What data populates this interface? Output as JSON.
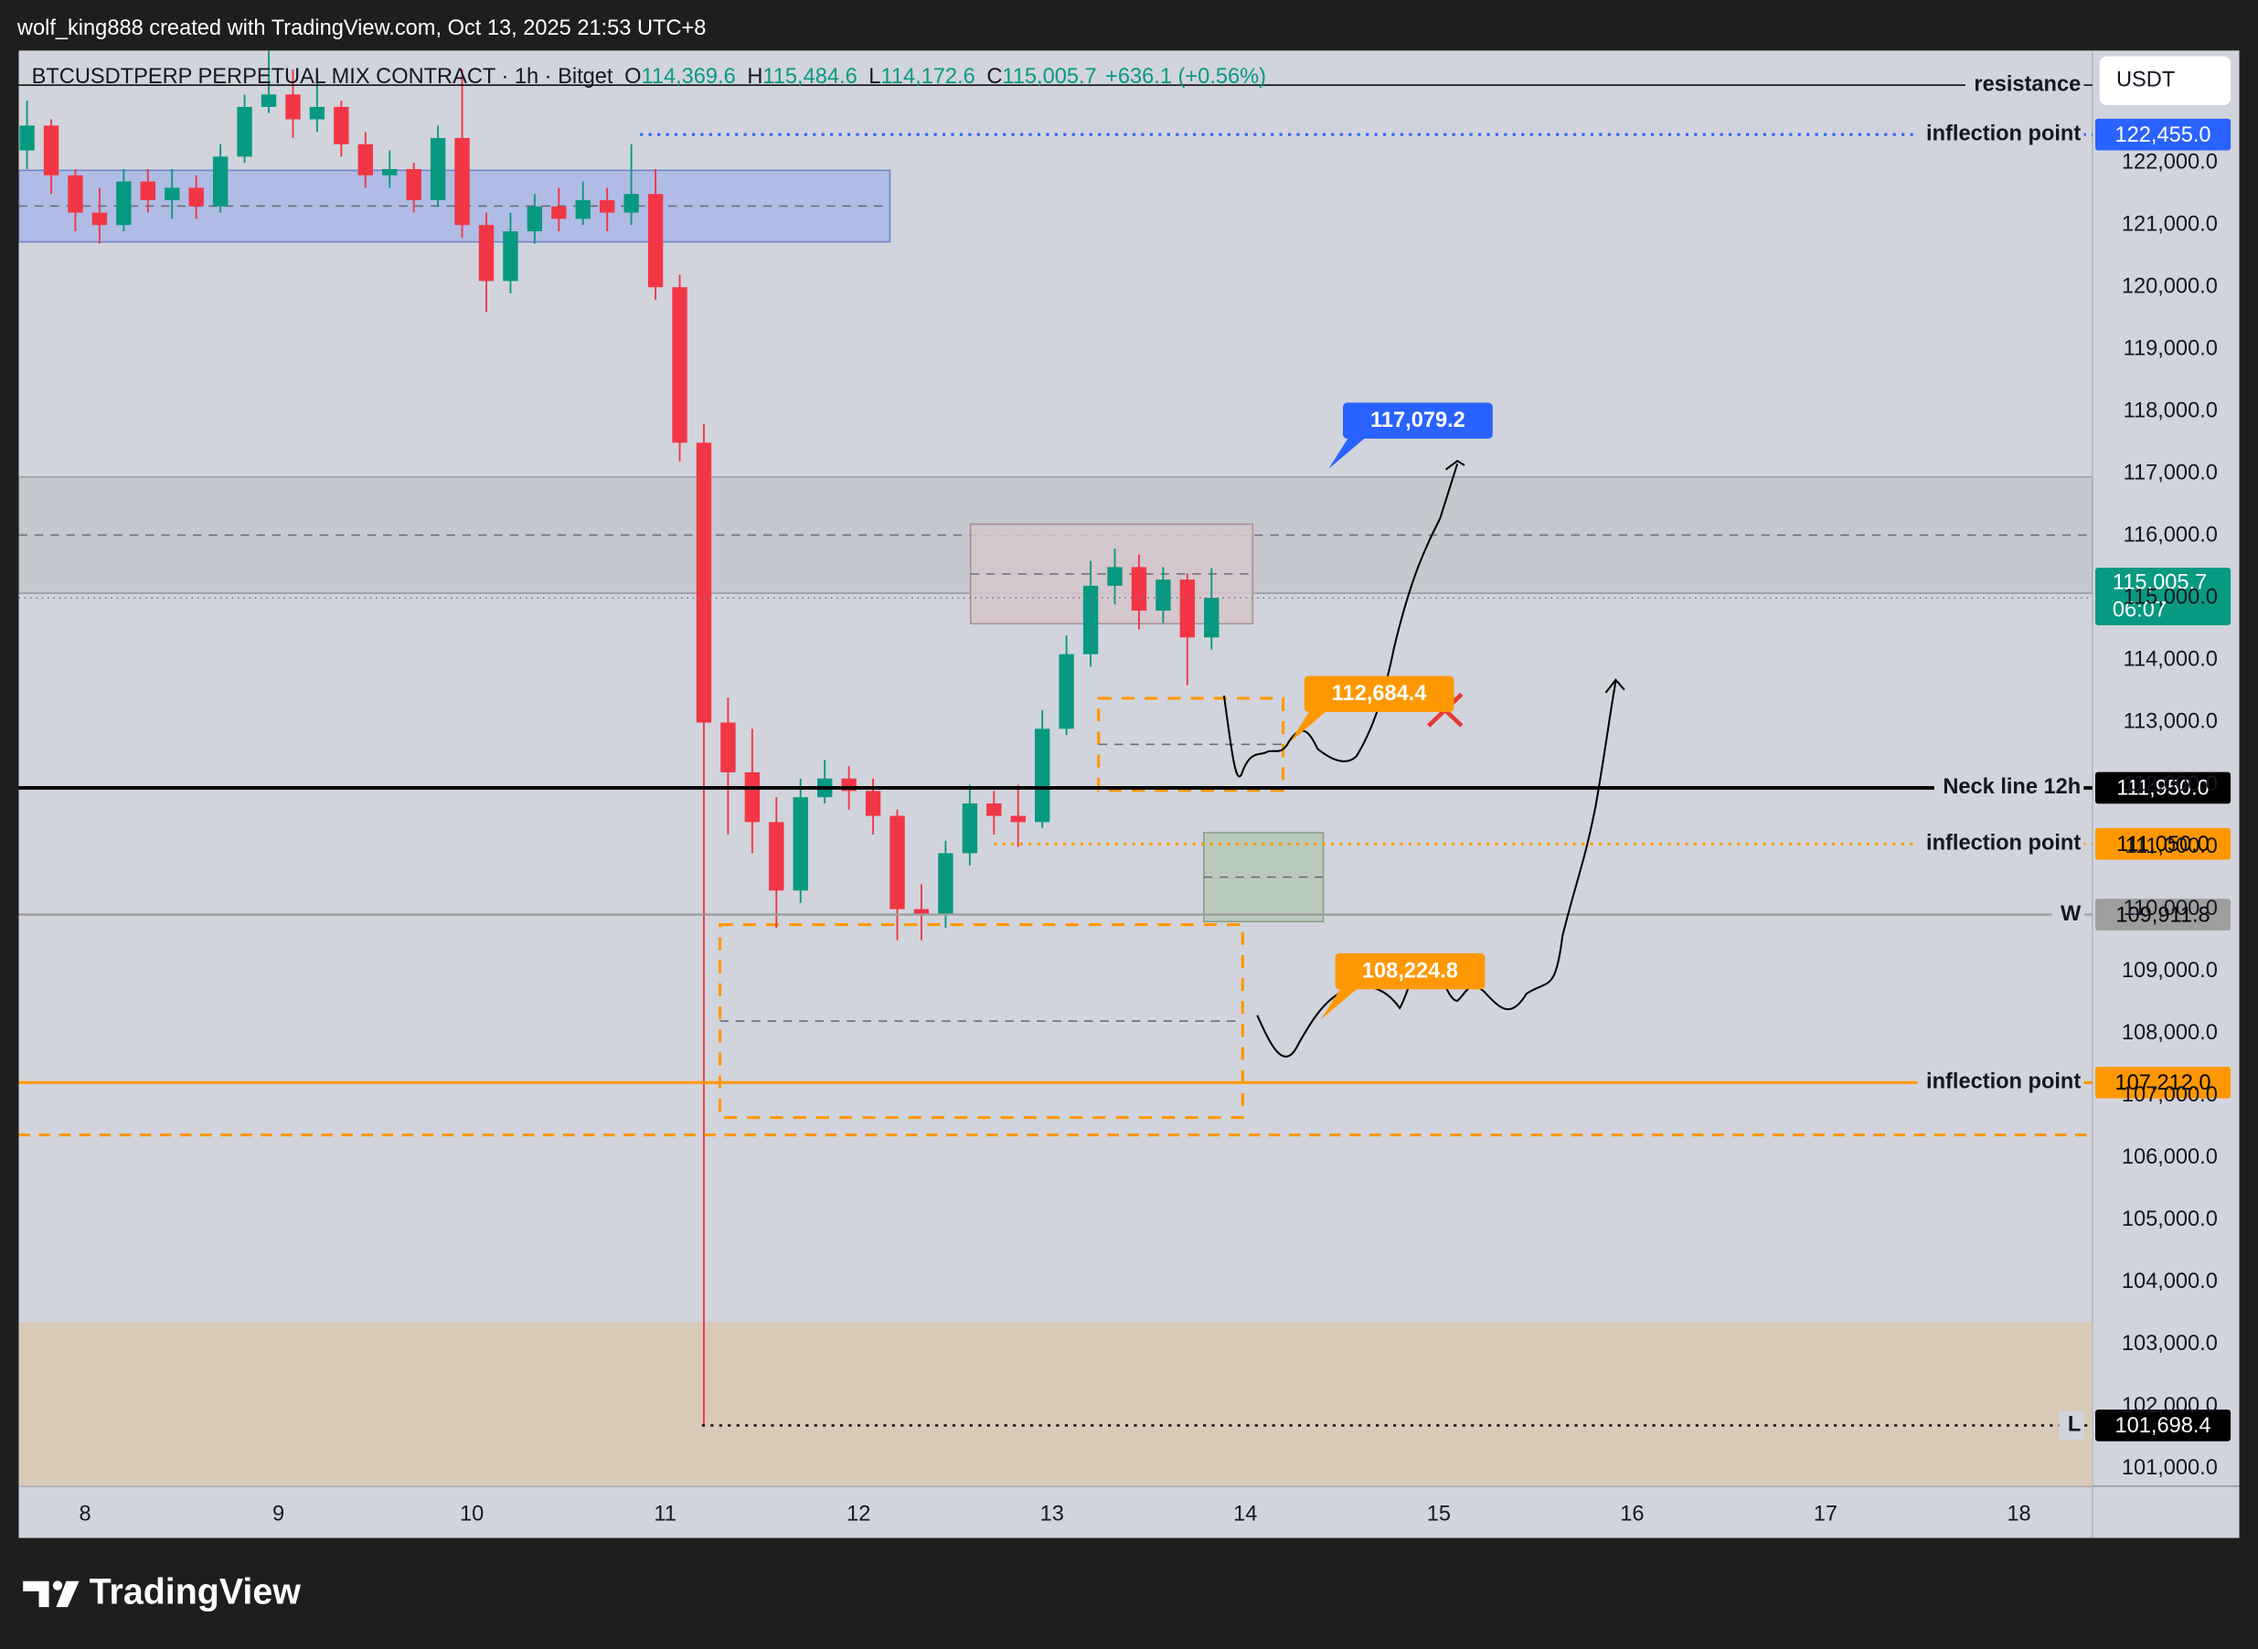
{
  "attribution": "wolf_king888 created with TradingView.com, Oct 13, 2025 21:53 UTC+8",
  "footer": {
    "logo": "TradingView"
  },
  "chart_data": {
    "type": "candlestick",
    "title": "BTCUSDTPERP PERPETUAL MIX CONTRACT · 1h · Bitget",
    "ohlc": [
      {
        "key": "O",
        "value": "114,369.6"
      },
      {
        "key": "H",
        "value": "115,484.6"
      },
      {
        "key": "L",
        "value": "114,172.6"
      },
      {
        "key": "C",
        "value": "115,005.7"
      }
    ],
    "change": "+636.1 (+0.56%)",
    "currency": "USDT",
    "xlim": [
      7.657,
      18.38
    ],
    "xticks": [
      8,
      9,
      10,
      11,
      12,
      13,
      14,
      15,
      16,
      17,
      18
    ],
    "ylim": [
      100722,
      123806
    ],
    "yticks": [
      {
        "value": 101000,
        "label": "101,000.0"
      },
      {
        "value": 102000,
        "label": "102,000.0"
      },
      {
        "value": 103000,
        "label": "103,000.0"
      },
      {
        "value": 104000,
        "label": "104,000.0"
      },
      {
        "value": 105000,
        "label": "105,000.0"
      },
      {
        "value": 106000,
        "label": "106,000.0"
      },
      {
        "value": 107000,
        "label": "107,000.0"
      },
      {
        "value": 108000,
        "label": "108,000.0"
      },
      {
        "value": 109000,
        "label": "109,000.0"
      },
      {
        "value": 110000,
        "label": "110,000.0"
      },
      {
        "value": 111000,
        "label": "111,000.0"
      },
      {
        "value": 112000,
        "label": "112,000.0"
      },
      {
        "value": 113000,
        "label": "113,000.0"
      },
      {
        "value": 114000,
        "label": "114,000.0"
      },
      {
        "value": 115000,
        "label": "115,000.0"
      },
      {
        "value": 116000,
        "label": "116,000.0"
      },
      {
        "value": 117000,
        "label": "117,000.0"
      },
      {
        "value": 118000,
        "label": "118,000.0"
      },
      {
        "value": 119000,
        "label": "119,000.0"
      },
      {
        "value": 120000,
        "label": "120,000.0"
      },
      {
        "value": 121000,
        "label": "121,000.0"
      },
      {
        "value": 122000,
        "label": "122,000.0"
      }
    ],
    "grid": false,
    "up_color": "#089981",
    "down_color": "#f23645",
    "candles": {
      "x": [
        7.7,
        7.825,
        7.95,
        8.075,
        8.2,
        8.325,
        8.45,
        8.575,
        8.7,
        8.825,
        8.95,
        9.075,
        9.2,
        9.325,
        9.45,
        9.575,
        9.7,
        9.825,
        9.95,
        10.075,
        10.2,
        10.325,
        10.45,
        10.575,
        10.7,
        10.825,
        10.95,
        11.075,
        11.2,
        11.325,
        11.45,
        11.575,
        11.7,
        11.825,
        11.95,
        12.075,
        12.2,
        12.325,
        12.45,
        12.575,
        12.7,
        12.825,
        12.95,
        13.075,
        13.2,
        13.325,
        13.45,
        13.575,
        13.7,
        13.825
      ],
      "open": [
        122200,
        122600,
        121800,
        121200,
        121000,
        121700,
        121400,
        121600,
        121300,
        122100,
        122900,
        123100,
        122700,
        122900,
        122300,
        121800,
        121900,
        121400,
        122400,
        121000,
        120100,
        120900,
        121300,
        121100,
        121400,
        121200,
        121500,
        120000,
        117500,
        113000,
        112200,
        111400,
        110300,
        111800,
        112100,
        111900,
        111500,
        110000,
        109900,
        110900,
        111700,
        111500,
        111400,
        112900,
        114100,
        115200,
        115500,
        114800,
        115300,
        114369.6
      ],
      "high": [
        123000,
        122700,
        121900,
        121600,
        121900,
        121900,
        121900,
        121800,
        122300,
        123100,
        123800,
        123500,
        123400,
        123000,
        122500,
        122200,
        122000,
        122600,
        123500,
        121200,
        121200,
        121500,
        121600,
        121700,
        121600,
        122300,
        121900,
        120200,
        117800,
        113400,
        112900,
        111800,
        112100,
        112400,
        112300,
        112100,
        111600,
        110400,
        111100,
        112000,
        111900,
        112000,
        113200,
        114400,
        115600,
        115800,
        115700,
        115500,
        115400,
        115484.6
      ],
      "low": [
        121900,
        121500,
        120900,
        120700,
        120900,
        121200,
        121100,
        121100,
        121200,
        122000,
        122800,
        122400,
        122500,
        122100,
        121600,
        121600,
        121200,
        121300,
        120800,
        119600,
        119900,
        120700,
        120900,
        121000,
        120900,
        121000,
        119800,
        117200,
        101698.4,
        111200,
        110900,
        109700,
        110100,
        111700,
        111600,
        111200,
        109500,
        109500,
        109700,
        110700,
        111200,
        111000,
        111300,
        112800,
        113900,
        114900,
        114500,
        114600,
        113600,
        114172.6
      ],
      "close": [
        122600,
        121800,
        121200,
        121000,
        121700,
        121400,
        121600,
        121300,
        122100,
        122900,
        123100,
        122700,
        122900,
        122300,
        121800,
        121900,
        121400,
        122400,
        121000,
        120100,
        120900,
        121300,
        121100,
        121400,
        121200,
        121500,
        120000,
        117500,
        113000,
        112200,
        111400,
        110300,
        111800,
        112100,
        111900,
        111500,
        110000,
        109900,
        110900,
        111700,
        111500,
        111400,
        112900,
        114100,
        115200,
        115500,
        114800,
        115300,
        114369.6,
        115005.7
      ]
    },
    "last_price": {
      "value": 115005.7,
      "label": "115,005.7",
      "countdown": "06:07",
      "color": "#089981"
    },
    "zones": [
      {
        "x": [
          7.657,
          18.38
        ],
        "y": [
          100722,
          103360
        ],
        "fill": "#d9c8b0",
        "border": "none",
        "mid": false
      },
      {
        "x": [
          7.657,
          12.162
        ],
        "y": [
          120730,
          121880
        ],
        "fill": "#aab7e6",
        "border": "solid",
        "stroke": "#6f84c9",
        "mid": true
      },
      {
        "x": [
          7.657,
          18.38
        ],
        "y": [
          115080,
          116950
        ],
        "fill": "#c4c6ce",
        "border": "solid",
        "stroke": "#9a9ca4",
        "mid": true
      },
      {
        "x": [
          12.579,
          14.038
        ],
        "y": [
          114590,
          116190
        ],
        "fill": "#d6c6cc",
        "border": "solid",
        "stroke": "#a88f96",
        "mid": true
      },
      {
        "x": [
          13.241,
          14.195
        ],
        "y": [
          111910,
          113390
        ],
        "fill": "none",
        "border": "dashed",
        "stroke": "#ff9800",
        "mid": true
      },
      {
        "x": [
          13.785,
          14.403
        ],
        "y": [
          109800,
          111230
        ],
        "fill": "#b5c7b4",
        "border": "solid",
        "stroke": "#8aa08a",
        "mid": true
      },
      {
        "x": [
          11.283,
          13.986
        ],
        "y": [
          106650,
          109750
        ],
        "fill": "none",
        "border": "dashed",
        "stroke": "#ff9800",
        "mid": true
      }
    ],
    "levels": [
      {
        "name": "resistance",
        "value": 123250,
        "color": "#000000",
        "style": "solid",
        "width": 1
      },
      {
        "name": "inflection point",
        "value": 122455,
        "label": "122,455.0",
        "color": "#2962ff",
        "text_color": "#ffffff",
        "style": "dotted",
        "width": 2,
        "x_start": 10.87
      },
      {
        "name": "Neck line 12h",
        "value": 111950,
        "label": "111,950.0",
        "color": "#000000",
        "text_color": "#ffffff",
        "style": "solid",
        "width": 2.5
      },
      {
        "name": "inflection point",
        "value": 111050,
        "label": "111,050.0",
        "color": "#ff9800",
        "text_color": "#000000",
        "style": "dotted",
        "width": 2,
        "x_start": 12.7
      },
      {
        "name": "W",
        "value": 109911.8,
        "label": "109,911.8",
        "color": "#9e9e9e",
        "text_color": "#000000",
        "style": "solid",
        "width": 1.5
      },
      {
        "name": "inflection point",
        "value": 107212,
        "label": "107,212.0",
        "color": "#ff9800",
        "text_color": "#000000",
        "style": "solid",
        "width": 2
      },
      {
        "value": 106370,
        "color": "#ff9800",
        "style": "dashed",
        "width": 2
      },
      {
        "name": "L",
        "value": 101698.4,
        "label": "101,698.4",
        "color": "#000000",
        "text_color": "#ffffff",
        "style": "dotted",
        "width": 1.5,
        "x_start": 11.19
      }
    ],
    "callouts": [
      {
        "value": 117079.2,
        "label": "117,079.2",
        "x": 14.43,
        "color": "#2962ff",
        "text_color": "#ffffff"
      },
      {
        "value": 112684.4,
        "label": "112,684.4",
        "x": 14.23,
        "color": "#ff9800",
        "text_color": "#ffffff"
      },
      {
        "value": 108224.8,
        "label": "108,224.8",
        "x": 14.39,
        "color": "#ff9800",
        "text_color": "#ffffff"
      }
    ]
  }
}
